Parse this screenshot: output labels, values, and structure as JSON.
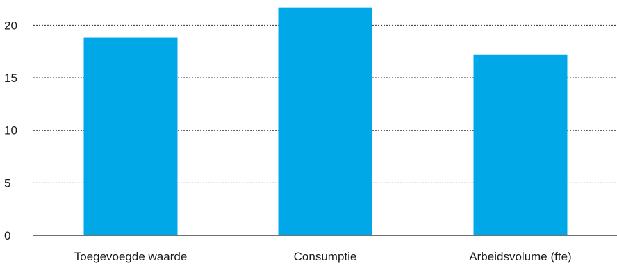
{
  "chart_data": {
    "type": "bar",
    "title": "",
    "xlabel": "",
    "ylabel": "",
    "categories": [
      "Toegevoegde waarde",
      "Consumptie",
      "Arbeidsvolume (fte)"
    ],
    "values": [
      18.8,
      21.7,
      17.2
    ],
    "ylim": [
      0,
      22
    ],
    "yticks": [
      0,
      5,
      10,
      15,
      20
    ],
    "grid": true,
    "legend": "none",
    "colors": {
      "bar": "#00a8e8",
      "grid": "#333333",
      "axis": "#1a1a1a"
    }
  }
}
